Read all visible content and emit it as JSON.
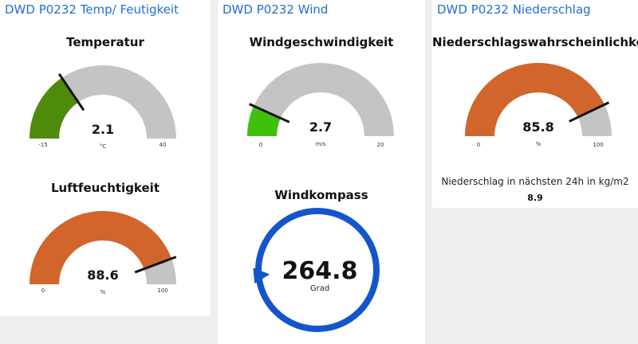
{
  "colors": {
    "group_title": "#1f6fd6",
    "gauge_track": "#c4c4c4",
    "needle": "#111111",
    "compass_ring": "#1455cc"
  },
  "group_temp": {
    "title": "DWD P0232 Temp/ Feutigkeit",
    "temperatur": {
      "label": "Temperatur",
      "value": "2.1",
      "unit": "°C",
      "min": "-15",
      "max": "40",
      "color": "#4f8b0b"
    },
    "luftfeuchtigkeit": {
      "label": "Luftfeuchtigkeit",
      "value": "88.6",
      "unit": "%",
      "min": "0",
      "max": "100",
      "color": "#d2652c"
    }
  },
  "group_wind": {
    "title": "DWD P0232 Wind",
    "windgeschwindigkeit": {
      "label": "Windgeschwindigkeit",
      "value": "2.7",
      "unit": "m/s",
      "min": "0",
      "max": "20",
      "color": "#3fc10c"
    },
    "windkompass": {
      "label": "Windkompass",
      "value": "264.8",
      "unit": "Grad"
    }
  },
  "group_rain": {
    "title": "DWD P0232 Niederschlag",
    "wahrscheinlichkeit": {
      "label": "Niederschlagswahrscheinlichkeit",
      "value": "85.8",
      "unit": "%",
      "min": "0",
      "max": "100",
      "color": "#d2652c"
    },
    "menge": {
      "label": "Niederschlag in nächsten 24h in kg/m2",
      "value": "8.9"
    }
  }
}
